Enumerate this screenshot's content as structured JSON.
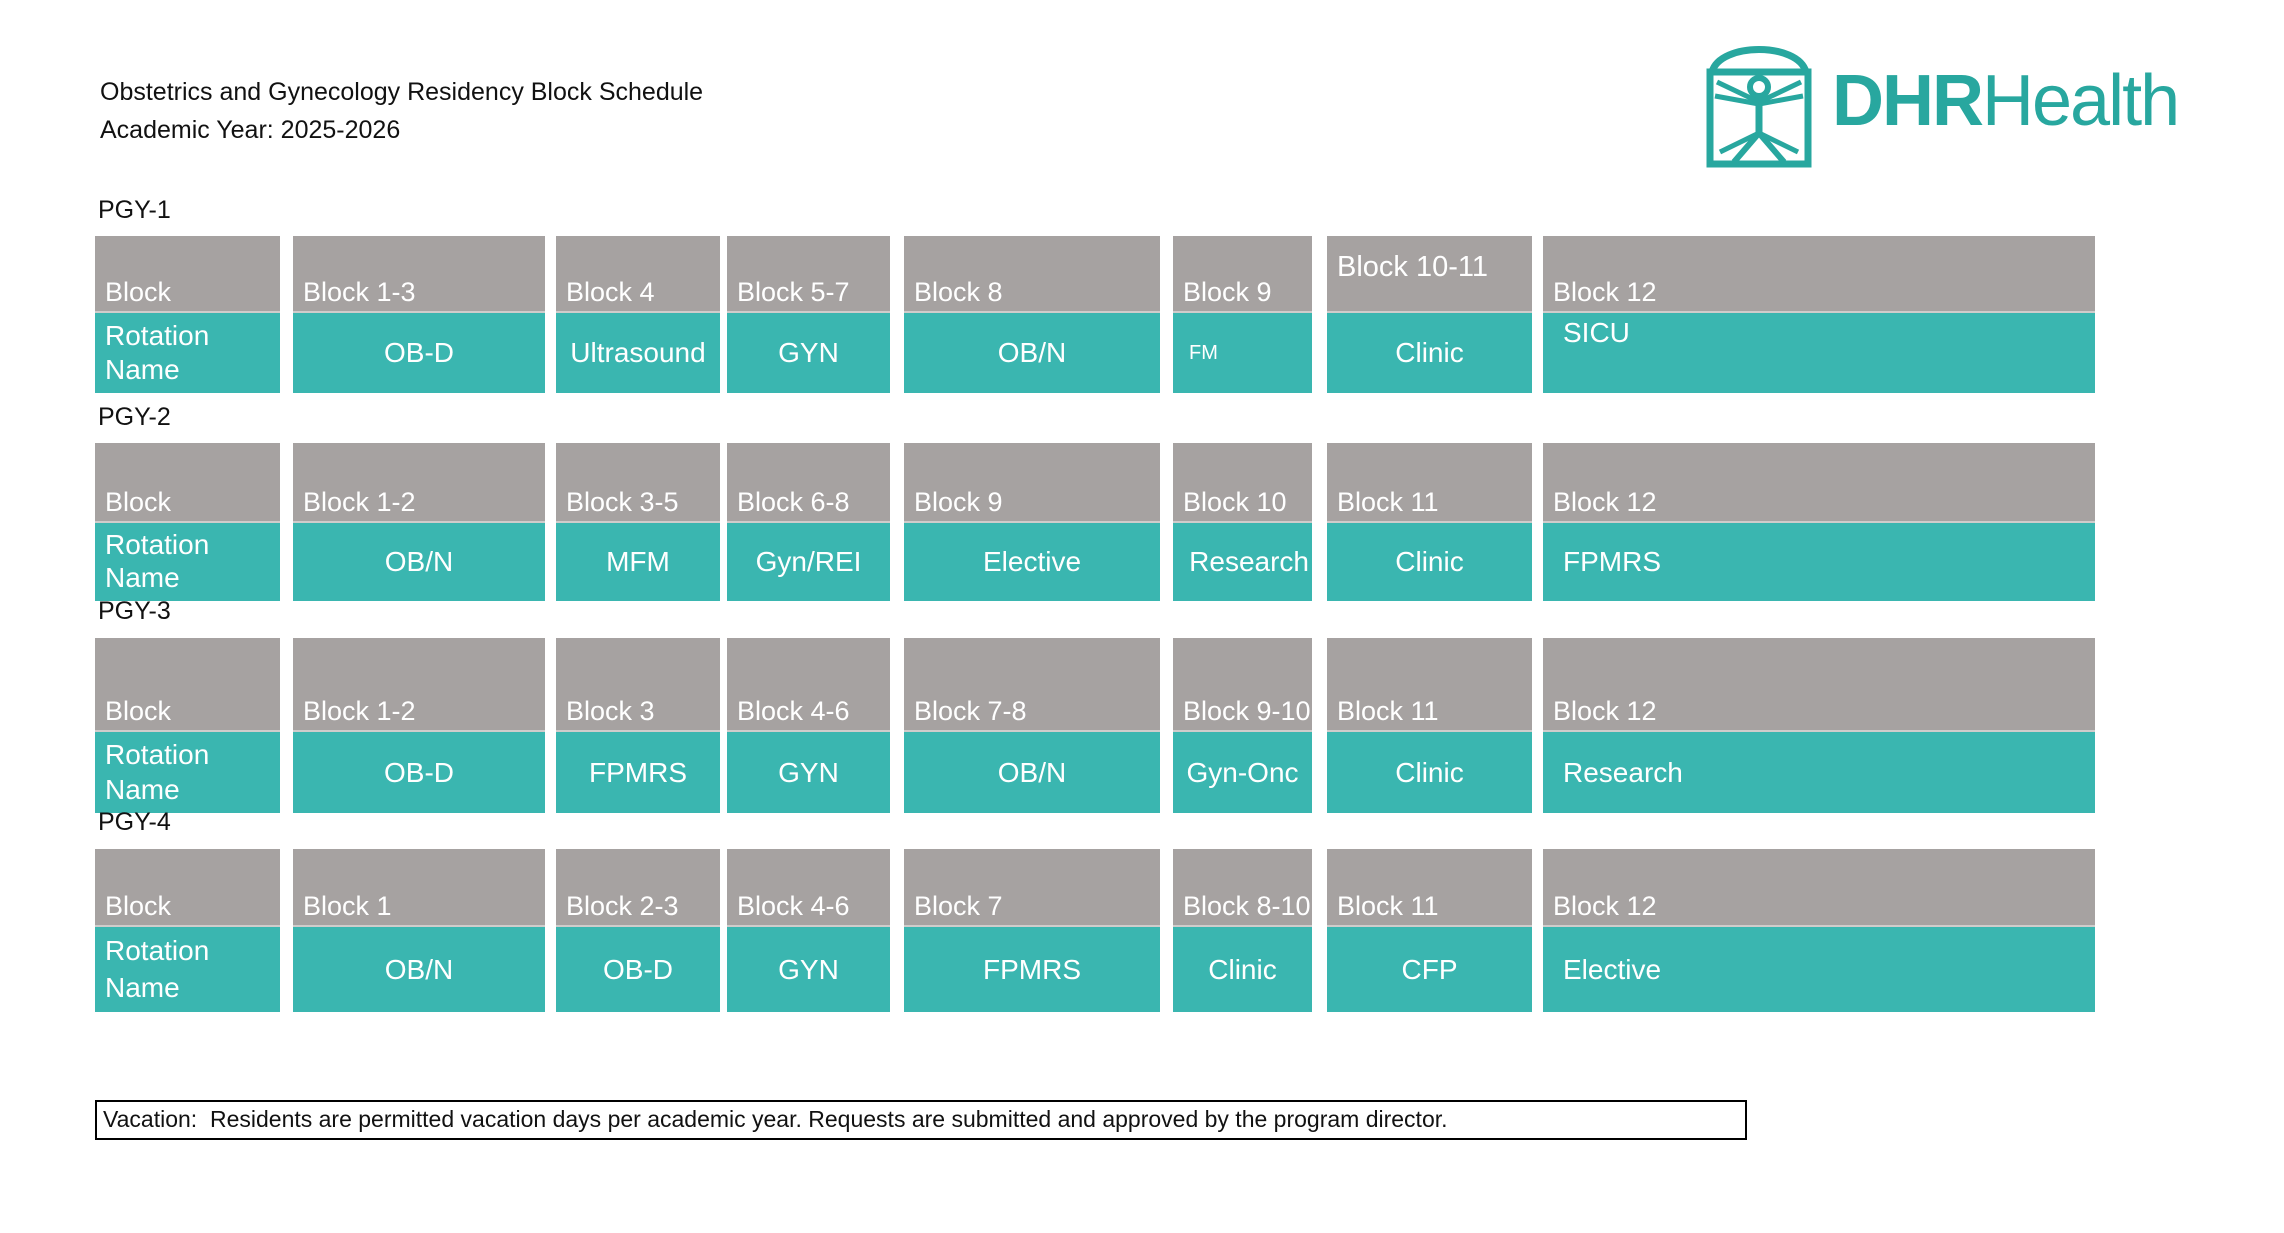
{
  "header": {
    "title": "Obstetrics and Gynecology Residency Block Schedule",
    "subtitle": "Academic Year: 2025-2026",
    "logo": {
      "brand_bold": "DHR",
      "brand_light": "Health",
      "icon": "vitruvian-man-icon",
      "color": "#28a79f"
    }
  },
  "colors": {
    "block_gray": "#a6a2a1",
    "block_teal": "#3ab6b0",
    "block_text": "#ffffff"
  },
  "label_cell": {
    "block": "Block",
    "rotation": "Rotation Name"
  },
  "rows": [
    {
      "level": "PGY-1",
      "cells": [
        {
          "block": "Block 1-3",
          "name": "OB-D"
        },
        {
          "block": "Block 4",
          "name": "Ultrasound"
        },
        {
          "block": "Block 5-7",
          "name": "GYN"
        },
        {
          "block": "Block 8",
          "name": "OB/N"
        },
        {
          "block": "Block 9",
          "name": "FM",
          "mods": "small"
        },
        {
          "block": "Block 10-11",
          "name": "Clinic",
          "label_mods": "raised"
        },
        {
          "block": "Block 12",
          "name": "SICU",
          "mods": "left top"
        }
      ]
    },
    {
      "level": "PGY-2",
      "cells": [
        {
          "block": "Block 1-2",
          "name": "OB/N"
        },
        {
          "block": "Block 3-5",
          "name": "MFM"
        },
        {
          "block": "Block 6-8",
          "name": "Gyn/REI"
        },
        {
          "block": "Block 9",
          "name": "Elective"
        },
        {
          "block": "Block 10",
          "name": "Research",
          "mods": "right"
        },
        {
          "block": "Block 11",
          "name": "Clinic"
        },
        {
          "block": "Block 12",
          "name": "FPMRS",
          "mods": "left"
        }
      ]
    },
    {
      "level": "PGY-3",
      "cells": [
        {
          "block": "Block 1-2",
          "name": "OB-D"
        },
        {
          "block": "Block 3",
          "name": "FPMRS"
        },
        {
          "block": "Block 4-6",
          "name": "GYN"
        },
        {
          "block": "Block 7-8",
          "name": "OB/N"
        },
        {
          "block": "Block 9-10",
          "name": "Gyn-Onc"
        },
        {
          "block": "Block 11",
          "name": "Clinic"
        },
        {
          "block": "Block 12",
          "name": "Research",
          "mods": "left"
        }
      ]
    },
    {
      "level": "PGY-4",
      "cells": [
        {
          "block": "Block 1",
          "name": "OB/N"
        },
        {
          "block": "Block 2-3",
          "name": "OB-D"
        },
        {
          "block": "Block 4-6",
          "name": "GYN"
        },
        {
          "block": "Block 7",
          "name": "FPMRS"
        },
        {
          "block": "Block 8-10",
          "name": "Clinic"
        },
        {
          "block": "Block 11",
          "name": "CFP"
        },
        {
          "block": "Block 12",
          "name": "Elective",
          "mods": "left"
        }
      ]
    }
  ],
  "footer": {
    "note": "Vacation:  Residents are permitted vacation days per academic year. Requests are submitted and approved by the program director."
  }
}
